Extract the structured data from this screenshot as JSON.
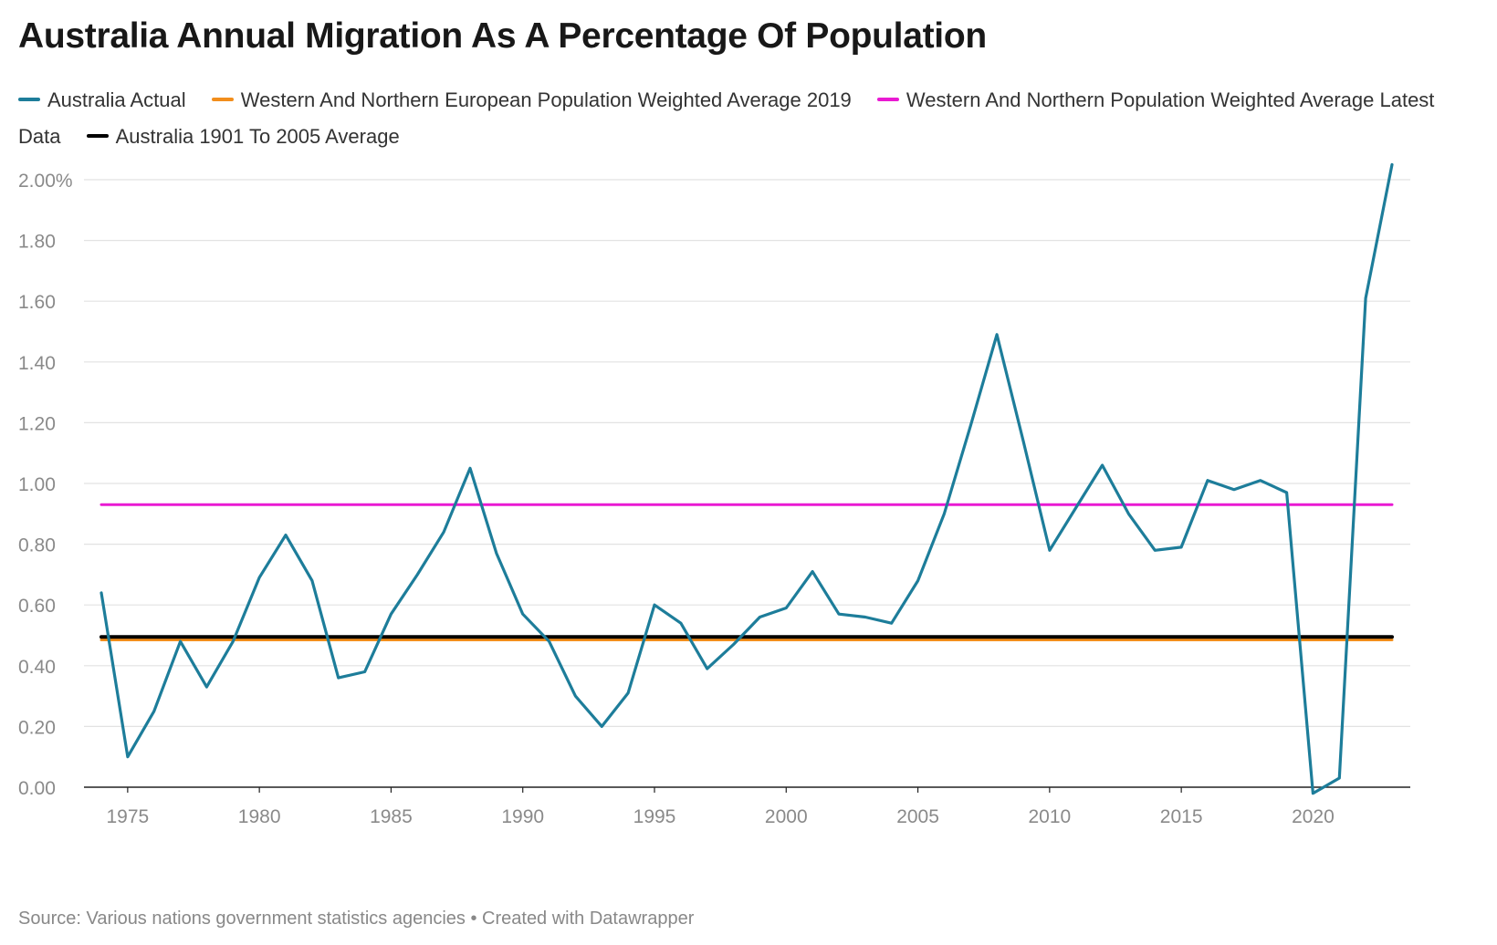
{
  "title": "Australia Annual Migration As A Percentage Of Population",
  "footer": {
    "source": "Source: Various nations government statistics agencies",
    "separator": "•",
    "credit": "Created with Datawrapper"
  },
  "chart_data": {
    "type": "line",
    "title": "Australia Annual Migration As A Percentage Of Population",
    "xlabel": "",
    "ylabel": "",
    "xlim": [
      1974,
      2023
    ],
    "ylim": [
      0,
      2.0
    ],
    "grid": "horizontal",
    "legend_position": "top",
    "x_ticks": [
      1975,
      1980,
      1985,
      1990,
      1995,
      2000,
      2005,
      2010,
      2015,
      2020
    ],
    "x_tick_labels": [
      "1975",
      "1980",
      "1985",
      "1990",
      "1995",
      "2000",
      "2005",
      "2010",
      "2015",
      "2020"
    ],
    "y_ticks": [
      0,
      0.2,
      0.4,
      0.6,
      0.8,
      1.0,
      1.2,
      1.4,
      1.6,
      1.8,
      2.0
    ],
    "y_tick_labels": [
      "0.00",
      "0.20",
      "0.40",
      "0.60",
      "0.80",
      "1.00",
      "1.20",
      "1.40",
      "1.60",
      "1.80",
      "2.00%"
    ],
    "series": [
      {
        "name": "Australia Actual",
        "color": "#1d7d9a",
        "x": [
          1974,
          1975,
          1976,
          1977,
          1978,
          1979,
          1980,
          1981,
          1982,
          1983,
          1984,
          1985,
          1986,
          1987,
          1988,
          1989,
          1990,
          1991,
          1992,
          1993,
          1994,
          1995,
          1996,
          1997,
          1998,
          1999,
          2000,
          2001,
          2002,
          2003,
          2004,
          2005,
          2006,
          2007,
          2008,
          2009,
          2010,
          2011,
          2012,
          2013,
          2014,
          2015,
          2016,
          2017,
          2018,
          2019,
          2020,
          2021,
          2022,
          2023
        ],
        "values": [
          0.64,
          0.1,
          0.25,
          0.48,
          0.33,
          0.48,
          0.69,
          0.83,
          0.68,
          0.36,
          0.38,
          0.57,
          0.7,
          0.84,
          1.05,
          0.77,
          0.57,
          0.48,
          0.3,
          0.2,
          0.31,
          0.6,
          0.54,
          0.39,
          0.47,
          0.56,
          0.59,
          0.71,
          0.57,
          0.56,
          0.54,
          0.68,
          0.9,
          1.19,
          1.49,
          1.14,
          0.78,
          0.92,
          1.06,
          0.9,
          0.78,
          0.79,
          1.01,
          0.98,
          1.01,
          0.97,
          -0.02,
          0.03,
          1.61,
          2.05
        ]
      },
      {
        "name": "Western And Northern European Population Weighted Average 2019",
        "color": "#f28e1c",
        "x": [
          1974,
          2023
        ],
        "values": [
          0.485,
          0.485
        ]
      },
      {
        "name": "Western And Northern Population Weighted Average Latest Data",
        "color": "#e91ad2",
        "x": [
          1974,
          2023
        ],
        "values": [
          0.93,
          0.93
        ]
      },
      {
        "name": "Australia 1901 To 2005 Average",
        "color": "#000000",
        "x": [
          1974,
          2023
        ],
        "values": [
          0.495,
          0.495
        ]
      }
    ]
  }
}
